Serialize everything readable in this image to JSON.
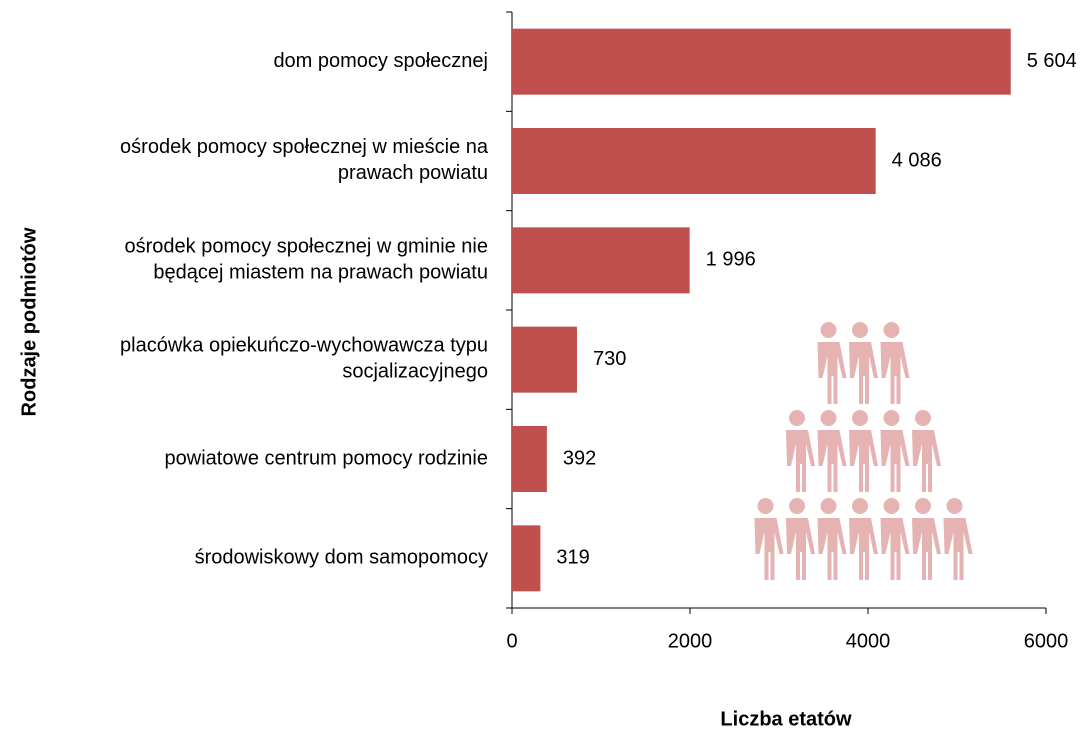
{
  "chart_data": {
    "type": "bar",
    "orientation": "horizontal",
    "categories": [
      "dom pomocy społecznej",
      "ośrodek pomocy społecznej w mieście na\nprawach powiatu",
      "ośrodek pomocy społecznej w gminie nie\nbędącej miastem na prawach powiatu",
      "placówka opiekuńczo-wychowawcza typu\nsocjalizacyjnego",
      "powiatowe centrum pomocy rodzinie",
      "środowiskowy dom samopomocy"
    ],
    "values": [
      5604,
      4086,
      1996,
      730,
      392,
      319
    ],
    "value_labels": [
      "5 604",
      "4 086",
      "1 996",
      "730",
      "392",
      "319"
    ],
    "color": "#c0504d",
    "xlim": [
      0,
      6000
    ],
    "xticks": [
      0,
      2000,
      4000,
      6000
    ],
    "x_label": "Liczba etatów",
    "y_label": "Rodzaje podmiotów",
    "grid": false
  }
}
